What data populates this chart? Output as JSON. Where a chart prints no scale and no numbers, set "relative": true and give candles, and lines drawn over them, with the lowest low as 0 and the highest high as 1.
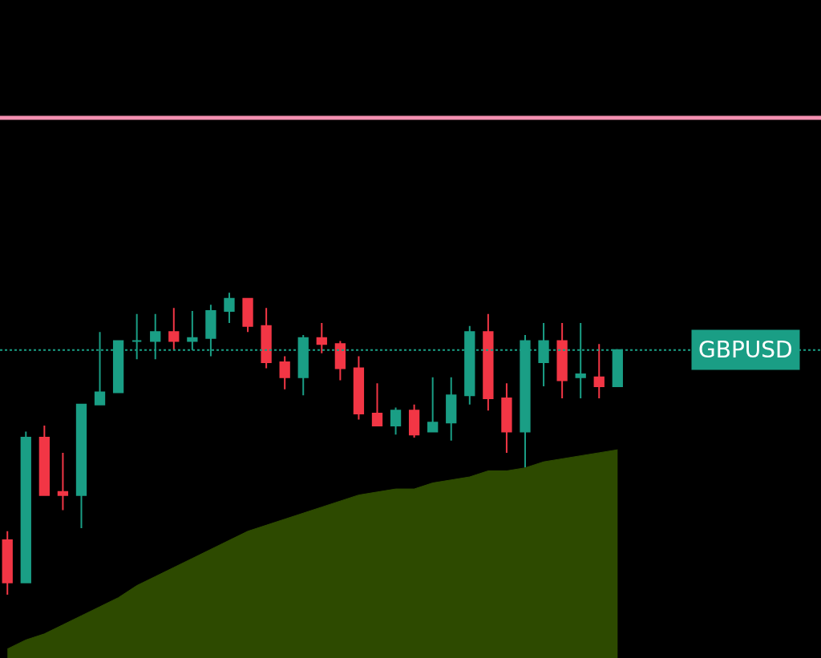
{
  "chart_data": {
    "type": "candlestick",
    "relative": true,
    "categories": [
      null,
      null,
      null,
      null,
      null,
      null,
      null,
      null,
      null,
      null,
      null,
      null,
      null,
      null,
      null,
      null,
      null,
      null,
      null,
      null,
      null,
      null,
      null,
      null,
      null,
      null,
      null,
      null,
      null,
      null,
      null,
      null,
      null,
      null
    ],
    "ohlc": [
      [
        0.18,
        0.21,
        0,
        0.04
      ],
      [
        0.04,
        0.54,
        0.04,
        0.52
      ],
      [
        0.52,
        0.56,
        0.33,
        0.33
      ],
      [
        0.34,
        0.47,
        0.28,
        0.33
      ],
      [
        0.33,
        0.63,
        0.22,
        0.63
      ],
      [
        0.63,
        0.87,
        0.63,
        0.67
      ],
      [
        0.67,
        0.84,
        0.67,
        0.84
      ],
      [
        0.84,
        0.93,
        0.78,
        0.84
      ],
      [
        0.84,
        0.93,
        0.78,
        0.87
      ],
      [
        0.87,
        0.95,
        0.81,
        0.84
      ],
      [
        0.84,
        0.94,
        0.81,
        0.85
      ],
      [
        0.85,
        0.96,
        0.79,
        0.94
      ],
      [
        0.94,
        1,
        0.9,
        0.98
      ],
      [
        0.98,
        0.98,
        0.87,
        0.89
      ],
      [
        0.89,
        0.95,
        0.75,
        0.77
      ],
      [
        0.77,
        0.79,
        0.68,
        0.72
      ],
      [
        0.72,
        0.86,
        0.66,
        0.85
      ],
      [
        0.85,
        0.9,
        0.8,
        0.83
      ],
      [
        0.83,
        0.84,
        0.71,
        0.75
      ],
      [
        0.75,
        0.79,
        0.58,
        0.6
      ],
      [
        0.6,
        0.7,
        0.56,
        0.56
      ],
      [
        0.56,
        0.62,
        0.53,
        0.61
      ],
      [
        0.61,
        0.63,
        0.52,
        0.53
      ],
      [
        0.54,
        0.72,
        0.54,
        0.57
      ],
      [
        0.57,
        0.72,
        0.51,
        0.66
      ],
      [
        0.66,
        0.89,
        0.63,
        0.87
      ],
      [
        0.87,
        0.93,
        0.61,
        0.65
      ],
      [
        0.65,
        0.7,
        0.47,
        0.54
      ],
      [
        0.54,
        0.86,
        0.42,
        0.84
      ],
      [
        0.77,
        0.9,
        0.69,
        0.84
      ],
      [
        0.84,
        0.9,
        0.65,
        0.71
      ],
      [
        0.72,
        0.9,
        0.65,
        0.73
      ],
      [
        0.72,
        0.83,
        0.65,
        0.69
      ],
      [
        0.69,
        0.81,
        0.69,
        0.81
      ]
    ],
    "series": [
      {
        "type": "area",
        "color": "#2d4a00",
        "values": [
          -0.18,
          -0.15,
          -0.13,
          -0.1,
          -0.07,
          -0.04,
          -0.01,
          0.03,
          0.06,
          0.09,
          0.12,
          0.15,
          0.18,
          0.21,
          0.23,
          0.25,
          0.27,
          0.29,
          0.31,
          0.33,
          0.34,
          0.35,
          0.35,
          0.37,
          0.38,
          0.39,
          0.41,
          0.41,
          0.42,
          0.44,
          0.45,
          0.46,
          0.47,
          0.48
        ]
      }
    ],
    "ref_lines": [
      {
        "axis": "y",
        "value": 1.58,
        "color": "#f48fb1",
        "line_style": "solid"
      },
      {
        "axis": "y",
        "value": 0.81,
        "color": "#1a9e85",
        "line_style": "dotted",
        "label": "GBPUSD"
      }
    ]
  }
}
